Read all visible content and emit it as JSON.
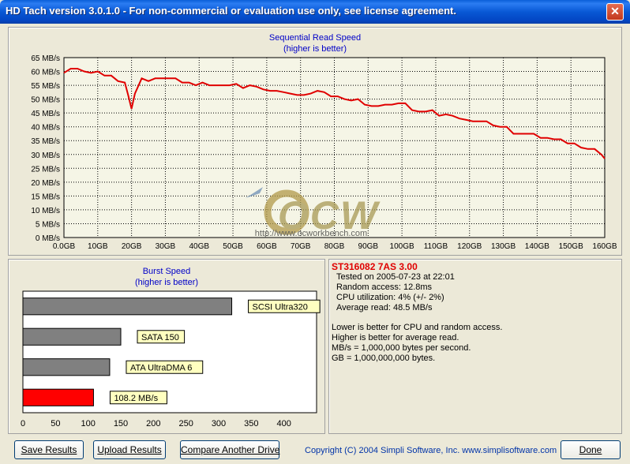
{
  "window": {
    "title": "HD Tach version 3.0.1.0  - For non-commercial or evaluation use only, see license agreement.",
    "close_glyph": "✕"
  },
  "chart_data": [
    {
      "type": "line",
      "title": "Sequential Read Speed",
      "subtitle": "(higher is better)",
      "xlabel": "",
      "ylabel": "",
      "x_ticks": [
        "0.0GB",
        "10GB",
        "20GB",
        "30GB",
        "40GB",
        "50GB",
        "60GB",
        "70GB",
        "80GB",
        "90GB",
        "100GB",
        "110GB",
        "120GB",
        "130GB",
        "140GB",
        "150GB",
        "160GB"
      ],
      "y_ticks": [
        "0 MB/s",
        "5 MB/s",
        "10 MB/s",
        "15 MB/s",
        "20 MB/s",
        "25 MB/s",
        "30 MB/s",
        "35 MB/s",
        "40 MB/s",
        "45 MB/s",
        "50 MB/s",
        "55 MB/s",
        "60 MB/s",
        "65 MB/s"
      ],
      "xlim": [
        0,
        160
      ],
      "ylim": [
        0,
        65
      ],
      "grid": true,
      "line_color": "#e00000",
      "series": [
        {
          "x": [
            0,
            2,
            4,
            6,
            8,
            10,
            12,
            14,
            16,
            18,
            19,
            20,
            21,
            23,
            25,
            27,
            29,
            31,
            33,
            35,
            37,
            39,
            41,
            43,
            45,
            47,
            49,
            51,
            53,
            55,
            57,
            59,
            61,
            63,
            65,
            67,
            69,
            71,
            73,
            75,
            77,
            79,
            81,
            83,
            85,
            87,
            89,
            91,
            93,
            95,
            97,
            99,
            101,
            103,
            105,
            107,
            109,
            111,
            113,
            115,
            117,
            119,
            121,
            123,
            125,
            127,
            129,
            131,
            133,
            135,
            137,
            139,
            141,
            143,
            145,
            147,
            149,
            151,
            153,
            155,
            157,
            159,
            160
          ],
          "y": [
            59.5,
            61,
            61,
            60,
            59.5,
            60,
            58.5,
            58.5,
            56.5,
            56,
            51.5,
            46.5,
            52,
            57.5,
            56.5,
            57.5,
            57.5,
            57.5,
            57.5,
            56,
            56,
            55,
            56,
            55,
            55,
            55,
            55,
            55.5,
            54,
            55,
            54.5,
            53.5,
            53,
            53,
            52.5,
            52,
            51.5,
            51.5,
            52,
            53,
            52.5,
            51,
            51,
            50,
            49.5,
            50,
            48,
            47.5,
            47.5,
            48,
            48,
            48.5,
            48.5,
            46,
            45.5,
            45.5,
            46,
            44,
            44.5,
            44,
            43,
            42.5,
            42,
            42,
            42,
            40.5,
            40,
            40,
            37.5,
            37.5,
            37.5,
            37.5,
            36,
            36,
            35.5,
            35.5,
            34,
            34,
            32.5,
            32,
            32,
            30,
            28.5
          ]
        }
      ]
    },
    {
      "type": "bar",
      "title": "Burst Speed",
      "subtitle": "(higher is better)",
      "orientation": "horizontal",
      "xlim": [
        0,
        450
      ],
      "x_ticks": [
        "0",
        "50",
        "100",
        "150",
        "200",
        "250",
        "300",
        "350",
        "400"
      ],
      "categories": [
        "SCSI Ultra320",
        "SATA 150",
        "ATA UltraDMA 6",
        "108.2 MB/s"
      ],
      "values": [
        320,
        150,
        133,
        108.2
      ],
      "colors": [
        "#808080",
        "#808080",
        "#808080",
        "#ff0000"
      ]
    }
  ],
  "watermark": {
    "logo_text": "OCW",
    "url": "http://www.ocworkbench.com"
  },
  "info": {
    "drive_name": "ST316082 7AS 3.00",
    "tested_on": "Tested on 2005-07-23 at 22:01",
    "random_access": "Random access: 12.8ms",
    "cpu_utilization": "CPU utilization: 4% (+/- 2%)",
    "average_read": "Average read: 48.5 MB/s",
    "note1": "Lower is better for CPU and random access.",
    "note2": "Higher is better for average read.",
    "note3": "MB/s = 1,000,000 bytes per second.",
    "note4": "GB = 1,000,000,000 bytes."
  },
  "buttons": {
    "save": "Save Results",
    "upload": "Upload Results",
    "compare": "Compare Another Drive",
    "done": "Done"
  },
  "footer": {
    "copyright": "Copyright (C) 2004 Simpli Software, Inc. www.simplisoftware.com"
  }
}
